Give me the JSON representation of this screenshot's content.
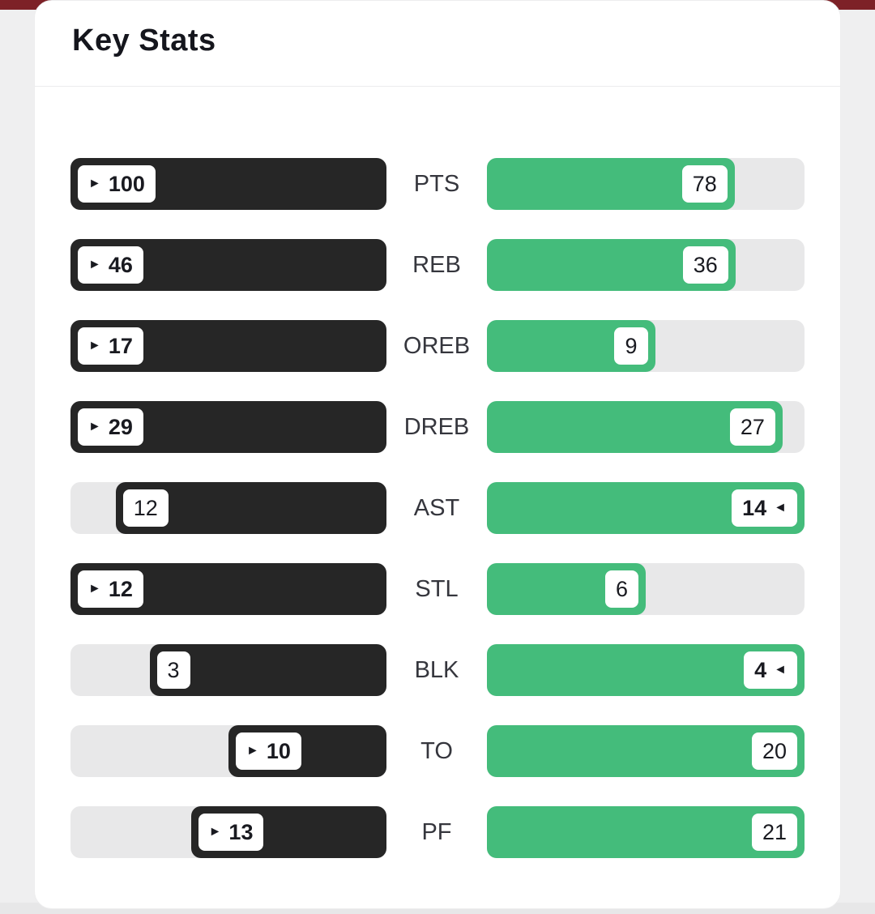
{
  "card": {
    "title": "Key Stats"
  },
  "colors": {
    "top_banner": "#7d2127",
    "page_bg": "#efeff0",
    "card_bg": "#ffffff",
    "track": "#e8e8e9",
    "left_fill": "#262626",
    "right_fill": "#44bc7b",
    "badge_bg": "#ffffff",
    "badge_text": "#191a20",
    "title_text": "#15161d",
    "label_text": "#35363d"
  },
  "chart_data": {
    "type": "bar",
    "title": "Key Stats",
    "categories": [
      "PTS",
      "REB",
      "OREB",
      "DREB",
      "AST",
      "STL",
      "BLK",
      "TO",
      "PF"
    ],
    "series": [
      {
        "name": "left-team",
        "values": [
          100,
          46,
          17,
          29,
          12,
          12,
          3,
          10,
          13
        ]
      },
      {
        "name": "right-team",
        "values": [
          78,
          36,
          9,
          27,
          14,
          6,
          4,
          20,
          21
        ]
      }
    ],
    "winners": [
      "left",
      "left",
      "left",
      "left",
      "right",
      "left",
      "right",
      "left",
      "left"
    ],
    "layout": {
      "orientation": "horizontal-paired",
      "left_bars_anchor": "right",
      "right_bars_anchor": "left",
      "bar_scale": "value / max(left, right) per row",
      "winner_marker": "bold value with pointer arrow toward center label"
    }
  }
}
